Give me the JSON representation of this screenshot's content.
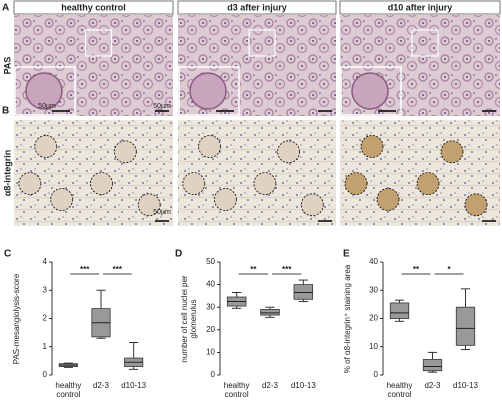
{
  "figure": {
    "columns": [
      "healthy control",
      "d3 after injury",
      "d10 after injury"
    ],
    "rows": [
      {
        "letter": "A",
        "label": "PAS"
      },
      {
        "letter": "B",
        "label": "α8-integrin"
      }
    ],
    "scale_labels": [
      "50µm",
      "50µm",
      "50µm"
    ]
  },
  "chart_data": [
    {
      "type": "box",
      "label": "C",
      "y_label": "PAS-mesangiolysis-score",
      "categories": [
        "healthy control",
        "d2-3",
        "d10-13"
      ],
      "stats": [
        [
          0.27,
          0.3,
          0.35,
          0.4,
          0.42
        ],
        [
          1.3,
          1.35,
          1.85,
          2.35,
          3.0
        ],
        [
          0.2,
          0.3,
          0.45,
          0.6,
          1.15
        ]
      ],
      "significance": [
        "***",
        "***"
      ],
      "ylim": [
        0,
        4
      ],
      "yticks": [
        0,
        1,
        2,
        3,
        4
      ],
      "color": "#999999"
    },
    {
      "type": "box",
      "label": "D",
      "y_label": "number of cell nuclei per glomerulus",
      "categories": [
        "healthy control",
        "d2-3",
        "d10-13"
      ],
      "stats": [
        [
          29.5,
          30.5,
          32.5,
          34.5,
          36.5
        ],
        [
          25.5,
          26.5,
          27.5,
          29,
          30
        ],
        [
          32.5,
          33.5,
          36.5,
          40,
          42
        ]
      ],
      "significance": [
        "**",
        "***"
      ],
      "ylim": [
        0,
        50
      ],
      "yticks": [
        0,
        10,
        20,
        30,
        40,
        50
      ],
      "color": "#999999"
    },
    {
      "type": "box",
      "label": "E",
      "y_label": "% of α8-integrin⁺ staining area",
      "categories": [
        "healthy control",
        "d2-3",
        "d10-13"
      ],
      "stats": [
        [
          19,
          20,
          22,
          25.5,
          26.5
        ],
        [
          1,
          1.5,
          3,
          5.5,
          8
        ],
        [
          9,
          10.5,
          16.5,
          24,
          30.5
        ]
      ],
      "significance": [
        "**",
        "*"
      ],
      "ylim": [
        0,
        40
      ],
      "yticks": [
        0,
        10,
        20,
        30,
        40
      ],
      "color": "#999999"
    }
  ]
}
